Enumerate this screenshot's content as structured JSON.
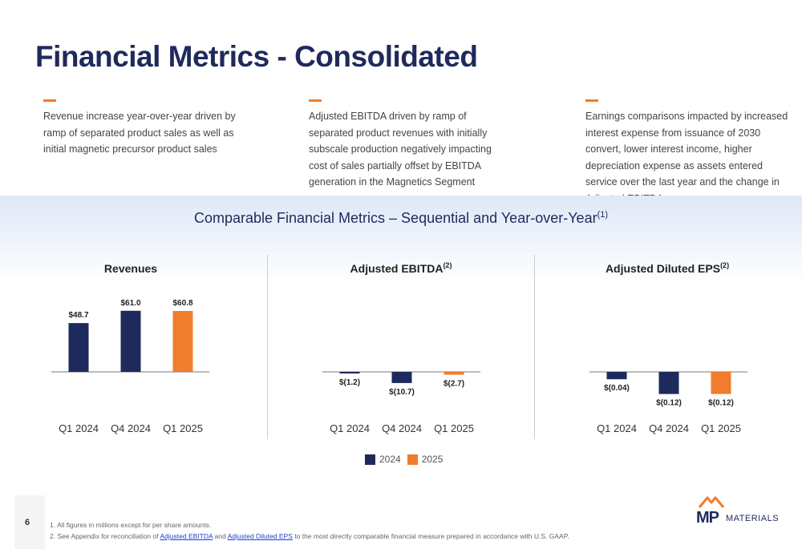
{
  "title": "Financial Metrics - Consolidated",
  "bullets": [
    "Revenue increase year-over-year driven by ramp of separated product sales as well as initial magnetic precursor product sales",
    "Adjusted EBITDA driven by ramp of separated product revenues with initially subscale production negatively impacting cost of sales partially offset by EBITDA generation in the Magnetics Segment",
    "Earnings comparisons impacted by increased interest expense from issuance of 2030 convert, lower interest income, higher depreciation expense as assets entered service over the last year and the change in Adjusted EBITDA"
  ],
  "subtitle": "Comparable Financial Metrics – Sequential and Year-over-Year",
  "subtitle_sup": "(1)",
  "colors": {
    "navy": "#1f2a5c",
    "orange": "#ef7d2d",
    "accent_dash": "#ef7d2d"
  },
  "chart_data": [
    {
      "type": "bar",
      "title": "Revenues",
      "title_sup": "",
      "categories": [
        "Q1 2024",
        "Q4 2024",
        "Q1 2025"
      ],
      "values": [
        48.7,
        61.0,
        60.8
      ],
      "labels": [
        "$48.7",
        "$61.0",
        "$60.8"
      ],
      "bar_years": [
        "2024",
        "2024",
        "2025"
      ]
    },
    {
      "type": "bar",
      "title": "Adjusted EBITDA",
      "title_sup": "(2)",
      "categories": [
        "Q1 2024",
        "Q4 2024",
        "Q1 2025"
      ],
      "values": [
        -1.2,
        -10.7,
        -2.7
      ],
      "labels": [
        "$(1.2)",
        "$(10.7)",
        "$(2.7)"
      ],
      "bar_years": [
        "2024",
        "2024",
        "2025"
      ]
    },
    {
      "type": "bar",
      "title": "Adjusted Diluted EPS",
      "title_sup": "(2)",
      "categories": [
        "Q1 2024",
        "Q4 2024",
        "Q1 2025"
      ],
      "values": [
        -0.04,
        -0.12,
        -0.12
      ],
      "labels": [
        "$(0.04)",
        "$(0.12)",
        "$(0.12)"
      ],
      "bar_years": [
        "2024",
        "2024",
        "2025"
      ]
    }
  ],
  "legend": [
    {
      "label": "2024",
      "color": "#1f2a5c"
    },
    {
      "label": "2025",
      "color": "#ef7d2d"
    }
  ],
  "page_number": "6",
  "footnotes": {
    "note1": "1. All figures in millions except for per share amounts.",
    "note2_prefix": "2. See Appendix for reconciliation of ",
    "note2_link1": "Adjusted EBITDA",
    "note2_and": " and ",
    "note2_link2": "Adjusted Diluted EPS",
    "note2_suffix": " to the most directly comparable financial measure prepared in accordance with U.S. GAAP."
  },
  "logo": {
    "mp": "MP",
    "materials": "MATERIALS"
  }
}
